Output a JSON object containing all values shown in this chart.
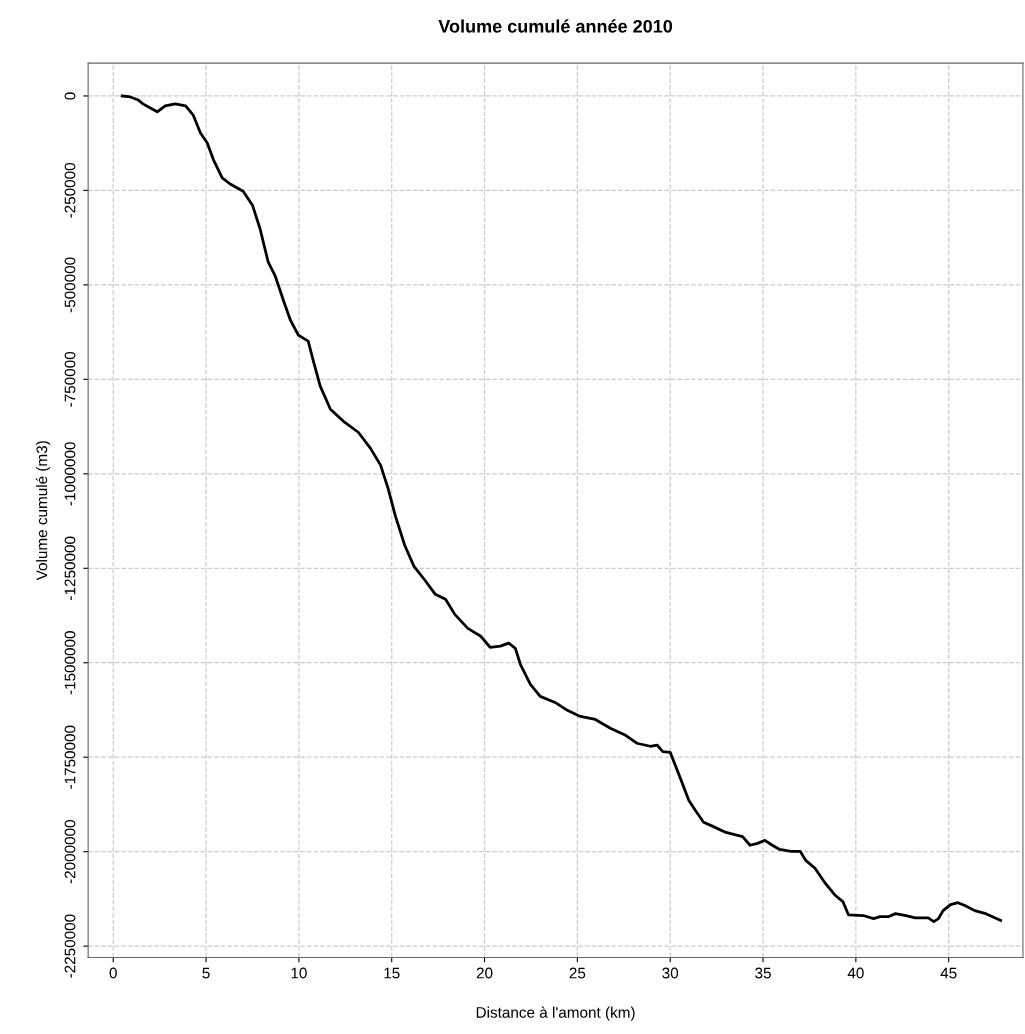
{
  "chart_data": {
    "type": "line",
    "title": "Volume cumulé année 2010",
    "xlabel": "Distance à l'amont (km)",
    "ylabel": "Volume cumulé (m3)",
    "x": [
      0.48,
      0.92,
      1.35,
      1.6,
      2.0,
      2.37,
      2.8,
      3.34,
      3.9,
      4.3,
      4.7,
      5.06,
      5.4,
      5.87,
      6.3,
      7.0,
      7.5,
      7.9,
      8.35,
      8.73,
      9.16,
      9.54,
      9.97,
      10.5,
      10.8,
      11.15,
      11.7,
      12.4,
      13.2,
      13.85,
      14.4,
      14.8,
      15.2,
      15.7,
      16.2,
      16.75,
      17.35,
      17.9,
      18.4,
      19.1,
      19.8,
      20.3,
      20.85,
      21.3,
      21.66,
      21.93,
      22.47,
      23.0,
      23.8,
      24.46,
      25.16,
      25.97,
      26.8,
      27.6,
      28.2,
      28.93,
      29.3,
      29.6,
      30.0,
      30.55,
      31.0,
      31.36,
      31.8,
      32.3,
      33.0,
      33.9,
      34.3,
      34.7,
      35.1,
      35.5,
      35.9,
      36.5,
      37.0,
      37.3,
      37.8,
      38.36,
      38.9,
      39.3,
      39.6,
      40.4,
      40.95,
      41.3,
      41.75,
      42.13,
      42.7,
      43.2,
      43.9,
      44.2,
      44.45,
      44.7,
      45.1,
      45.5,
      45.9,
      46.4,
      47.0,
      47.8
    ],
    "series": [
      {
        "color": "#000000",
        "values": [
          0,
          -2600,
          -10600,
          -21000,
          -32000,
          -42000,
          -26000,
          -21000,
          -26000,
          -50000,
          -98000,
          -124000,
          -169000,
          -217000,
          -233000,
          -252000,
          -289000,
          -350000,
          -440000,
          -477000,
          -540000,
          -593000,
          -633000,
          -649000,
          -705000,
          -768000,
          -829000,
          -861000,
          -890000,
          -932000,
          -977000,
          -1038000,
          -1112000,
          -1189000,
          -1245000,
          -1279000,
          -1319000,
          -1332000,
          -1372000,
          -1409000,
          -1430000,
          -1459000,
          -1456000,
          -1448000,
          -1462000,
          -1504000,
          -1557000,
          -1589000,
          -1605000,
          -1626000,
          -1642000,
          -1650000,
          -1674000,
          -1692000,
          -1713000,
          -1721000,
          -1718000,
          -1735000,
          -1737000,
          -1806000,
          -1864000,
          -1891000,
          -1922000,
          -1933000,
          -1949000,
          -1960000,
          -1983000,
          -1978000,
          -1970000,
          -1983000,
          -1994000,
          -1999000,
          -1999000,
          -2023000,
          -2044000,
          -2084000,
          -2116000,
          -2132000,
          -2167000,
          -2169000,
          -2177000,
          -2172000,
          -2172000,
          -2164000,
          -2169000,
          -2175000,
          -2175000,
          -2185000,
          -2177000,
          -2156000,
          -2140000,
          -2135000,
          -2143000,
          -2156000,
          -2164000,
          -2182000
        ]
      }
    ],
    "xlim": [
      -1.35,
      49.0
    ],
    "ylim": [
      -2280000,
      87000
    ],
    "xticks": [
      0,
      5,
      10,
      15,
      20,
      25,
      30,
      35,
      40,
      45
    ],
    "yticks": [
      0,
      -250000,
      -500000,
      -750000,
      -1000000,
      -1250000,
      -1500000,
      -1750000,
      -2000000,
      -2250000
    ],
    "grid": true,
    "line_style": "solid",
    "marker": "none"
  }
}
